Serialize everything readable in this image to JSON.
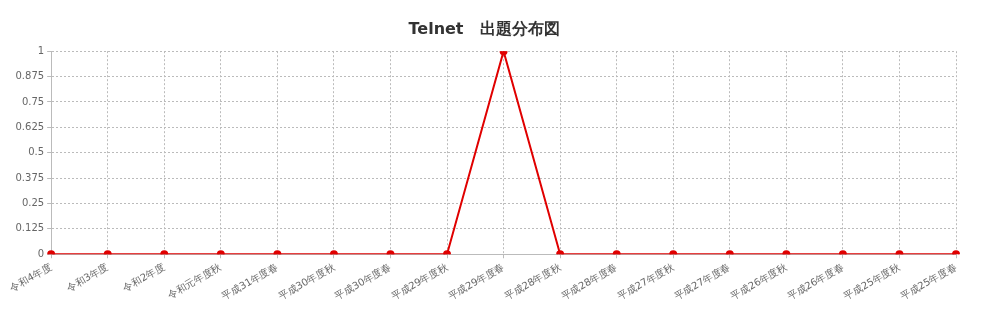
{
  "chart_data": {
    "type": "line",
    "title": "Telnet　出題分布図",
    "categories": [
      "令和4年度",
      "令和3年度",
      "令和2年度",
      "令和元年度秋",
      "平成31年度春",
      "平成30年度秋",
      "平成30年度春",
      "平成29年度秋",
      "平成29年度春",
      "平成28年度秋",
      "平成28年度春",
      "平成27年度秋",
      "平成27年度春",
      "平成26年度秋",
      "平成26年度春",
      "平成25年度秋",
      "平成25年度春"
    ],
    "series": [
      {
        "color": "#e00000",
        "values": [
          0,
          0,
          0,
          0,
          0,
          0,
          0,
          0,
          1,
          0,
          0,
          0,
          0,
          0,
          0,
          0,
          0
        ]
      }
    ],
    "ylim": [
      0,
      1
    ],
    "yticks": [
      0,
      0.125,
      0.25,
      0.375,
      0.5,
      0.625,
      0.75,
      0.875,
      1
    ],
    "grid": true,
    "legend": false,
    "marker": "circle",
    "line_style": "solid"
  }
}
